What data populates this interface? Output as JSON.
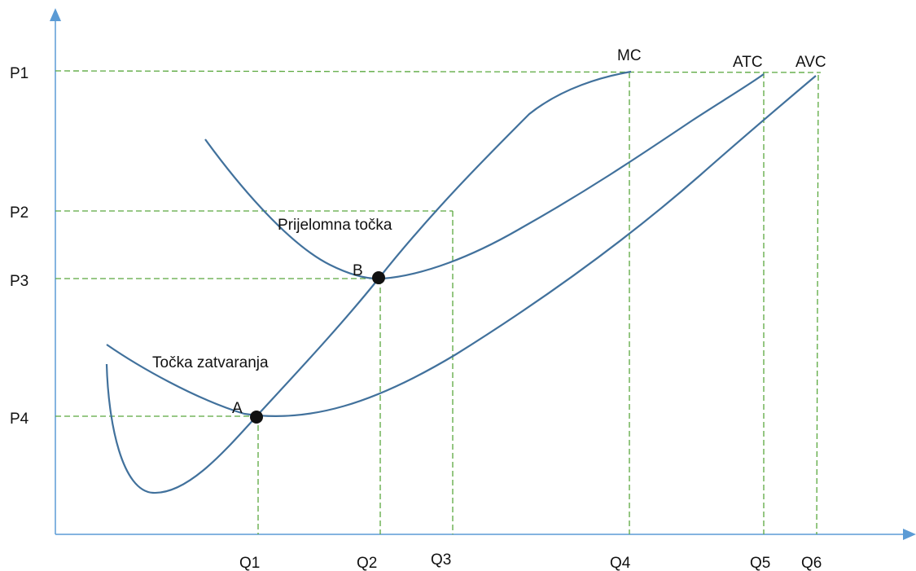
{
  "diagram": {
    "y_ticks": [
      "P1",
      "P2",
      "P3",
      "P4"
    ],
    "x_ticks": [
      "Q1",
      "Q2",
      "Q3",
      "Q4",
      "Q5",
      "Q6"
    ],
    "curves": [
      {
        "id": "mc",
        "label": "MC"
      },
      {
        "id": "atc",
        "label": "ATC"
      },
      {
        "id": "avc",
        "label": "AVC"
      }
    ],
    "points": [
      {
        "id": "a",
        "label": "A"
      },
      {
        "id": "b",
        "label": "B"
      }
    ],
    "annotations": {
      "break_even": "Prijelomna točka",
      "shutdown": "Točka zatvaranja"
    },
    "colors": {
      "axis": "#5b9bd5",
      "curve": "#41719c",
      "guide": "#5aa83e",
      "point": "#111111"
    }
  }
}
